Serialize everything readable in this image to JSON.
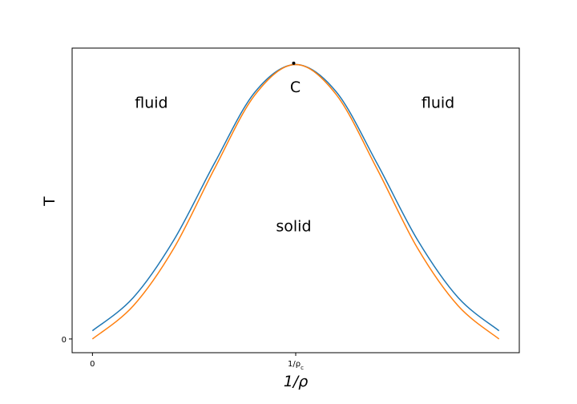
{
  "chart_data": {
    "type": "line",
    "xlabel": "1/ρ",
    "ylabel": "T",
    "xlim": [
      -0.05,
      1.05
    ],
    "ylim": [
      -0.05,
      1.06
    ],
    "x_ticks": [
      {
        "value": 0,
        "label": "0"
      },
      {
        "value": 0.5,
        "label": "1/ρ_c"
      }
    ],
    "y_ticks": [
      {
        "value": 0,
        "label": "0"
      }
    ],
    "grid": false,
    "series": [
      {
        "color": "#1f77b4",
        "x": [
          0,
          0.1,
          0.2,
          0.3,
          0.4,
          0.5,
          0.6,
          0.7,
          0.8,
          0.9,
          1.0
        ],
        "y": [
          0.03,
          0.15,
          0.36,
          0.64,
          0.9,
          1.0,
          0.9,
          0.64,
          0.36,
          0.15,
          0.03
        ]
      },
      {
        "color": "#ff7f0e",
        "x": [
          0,
          0.1,
          0.2,
          0.3,
          0.4,
          0.5,
          0.6,
          0.7,
          0.8,
          0.9,
          1.0
        ],
        "y": [
          0.0,
          0.12,
          0.33,
          0.62,
          0.89,
          1.0,
          0.89,
          0.62,
          0.33,
          0.12,
          0.0
        ]
      }
    ],
    "critical_point": {
      "x": 0.495,
      "y": 1.005,
      "label": "C",
      "color": "#000000"
    },
    "annotations": [
      {
        "text": "fluid",
        "x": 0.145,
        "y": 0.86
      },
      {
        "text": "fluid",
        "x": 0.85,
        "y": 0.86
      },
      {
        "text": "solid",
        "x": 0.495,
        "y": 0.41
      }
    ]
  }
}
